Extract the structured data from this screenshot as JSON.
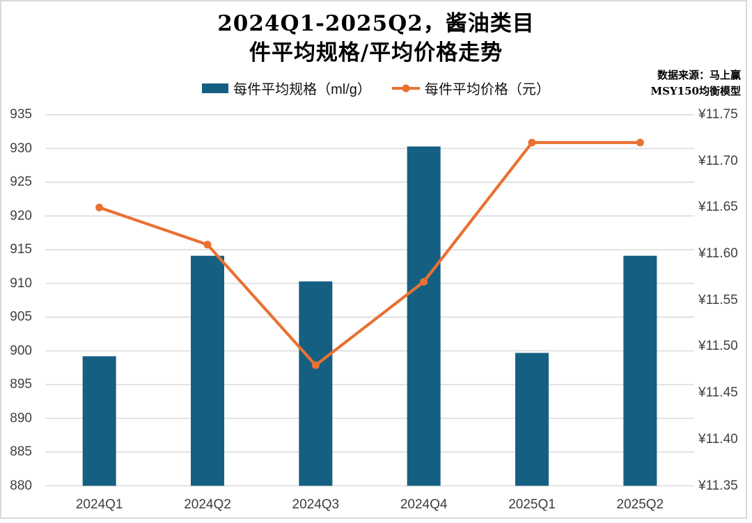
{
  "title": {
    "line1": "2024Q1-2025Q2，酱油类目",
    "line2": "件平均规格/平均价格走势"
  },
  "source": {
    "line1": "数据来源：马上赢",
    "line2": "MSY150均衡模型"
  },
  "chart_data": {
    "type": "combo-bar-line",
    "title": "2024Q1-2025Q2，酱油类目 件平均规格/平均价格走势",
    "categories": [
      "2024Q1",
      "2024Q2",
      "2024Q3",
      "2024Q4",
      "2025Q1",
      "2025Q2"
    ],
    "series": [
      {
        "name": "每件平均规格（ml/g）",
        "type": "bar",
        "axis": "left",
        "color": "#156082",
        "values": [
          899.2,
          914.1,
          910.3,
          930.3,
          899.7,
          914.1
        ]
      },
      {
        "name": "每件平均价格（元）",
        "type": "line",
        "axis": "right",
        "color": "#E97132",
        "values": [
          11.65,
          11.61,
          11.48,
          11.57,
          11.72,
          11.72
        ]
      }
    ],
    "left_axis": {
      "min": 880,
      "max": 935,
      "step": 5,
      "ticks": [
        880,
        885,
        890,
        895,
        900,
        905,
        910,
        915,
        920,
        925,
        930,
        935
      ]
    },
    "right_axis": {
      "min": 11.35,
      "max": 11.75,
      "step": 0.05,
      "prefix": "¥",
      "decimals": 2,
      "ticks": [
        11.35,
        11.4,
        11.45,
        11.5,
        11.55,
        11.6,
        11.65,
        11.7,
        11.75
      ]
    },
    "grid": "horizontal",
    "legend_position": "top"
  },
  "colors": {
    "bar": "#156082",
    "line": "#E97132",
    "grid": "#D9D9D9",
    "axis_text": "#404040",
    "title_text": "#000000"
  }
}
